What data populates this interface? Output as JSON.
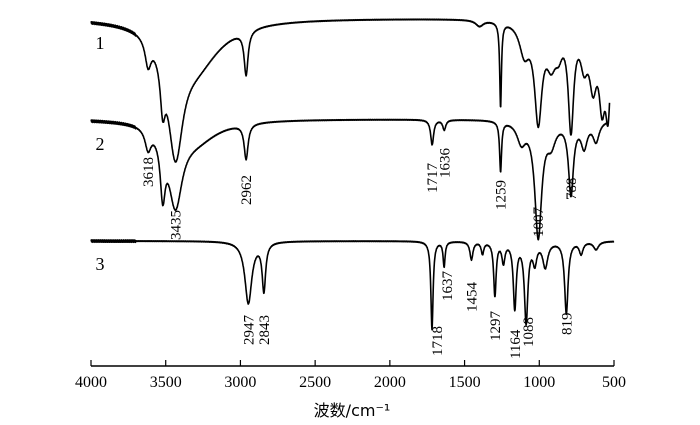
{
  "chart_data": {
    "type": "line",
    "title": "",
    "xlabel": "波数/cm⁻¹",
    "ylabel": "",
    "xlim": [
      4000,
      500
    ],
    "x_direction": "reversed",
    "x_ticks": [
      4000,
      3500,
      3000,
      2500,
      2000,
      1500,
      1000,
      500
    ],
    "grid": false,
    "series": [
      {
        "name": "1",
        "peaks": [
          3618,
          3520,
          3435,
          2962,
          1259,
          1007,
          788
        ],
        "peak_labels": []
      },
      {
        "name": "2",
        "peaks": [
          3618,
          3520,
          3435,
          2962,
          1717,
          1636,
          1259,
          1007,
          788
        ],
        "peak_labels": [
          {
            "text": "3618",
            "x": 3618
          },
          {
            "text": "3435",
            "x": 3435
          },
          {
            "text": "2962",
            "x": 2962
          },
          {
            "text": "1717",
            "x": 1717
          },
          {
            "text": "1636",
            "x": 1636
          },
          {
            "text": "1259",
            "x": 1259
          },
          {
            "text": "1007",
            "x": 1007
          },
          {
            "text": "788",
            "x": 788
          }
        ]
      },
      {
        "name": "3",
        "peaks": [
          2947,
          2843,
          1718,
          1637,
          1454,
          1297,
          1164,
          1088,
          819
        ],
        "peak_labels": [
          {
            "text": "2947",
            "x": 2947
          },
          {
            "text": "2843",
            "x": 2843
          },
          {
            "text": "1718",
            "x": 1718
          },
          {
            "text": "1637",
            "x": 1637
          },
          {
            "text": "1454",
            "x": 1454
          },
          {
            "text": "1297",
            "x": 1297
          },
          {
            "text": "1164",
            "x": 1164
          },
          {
            "text": "1088",
            "x": 1088
          },
          {
            "text": "819",
            "x": 819
          }
        ]
      }
    ]
  }
}
